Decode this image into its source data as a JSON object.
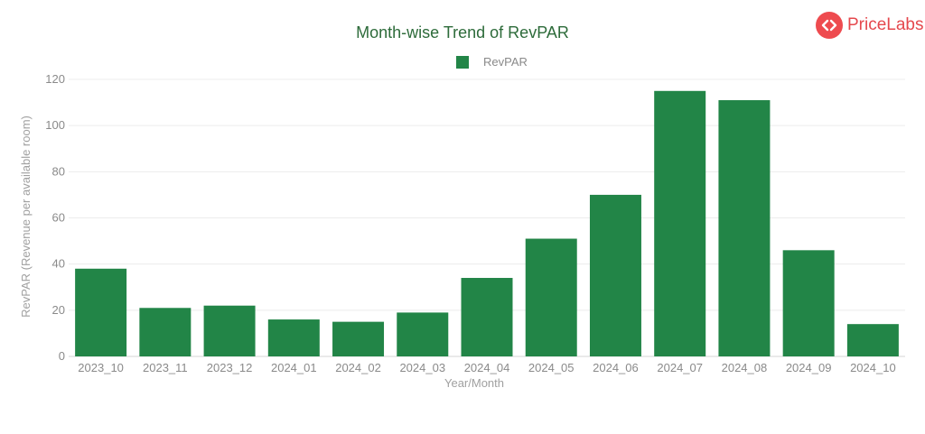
{
  "brand": {
    "name": "PriceLabs",
    "icon": "code-brackets-icon",
    "color": "#ee4b4f"
  },
  "chart_data": {
    "type": "bar",
    "title": "Month-wise Trend of RevPAR",
    "xlabel": "Year/Month",
    "ylabel": "RevPAR (Revenue per available room)",
    "categories": [
      "2023_10",
      "2023_11",
      "2023_12",
      "2024_01",
      "2024_02",
      "2024_03",
      "2024_04",
      "2024_05",
      "2024_06",
      "2024_07",
      "2024_08",
      "2024_09",
      "2024_10"
    ],
    "series": [
      {
        "name": "RevPAR",
        "color": "#228547",
        "values": [
          38,
          21,
          22,
          16,
          15,
          19,
          34,
          51,
          70,
          115,
          111,
          46,
          14
        ]
      }
    ],
    "ylim": [
      0,
      120
    ],
    "yticks": [
      0,
      20,
      40,
      60,
      80,
      100,
      120
    ],
    "grid": true,
    "legend_position": "top-center"
  }
}
